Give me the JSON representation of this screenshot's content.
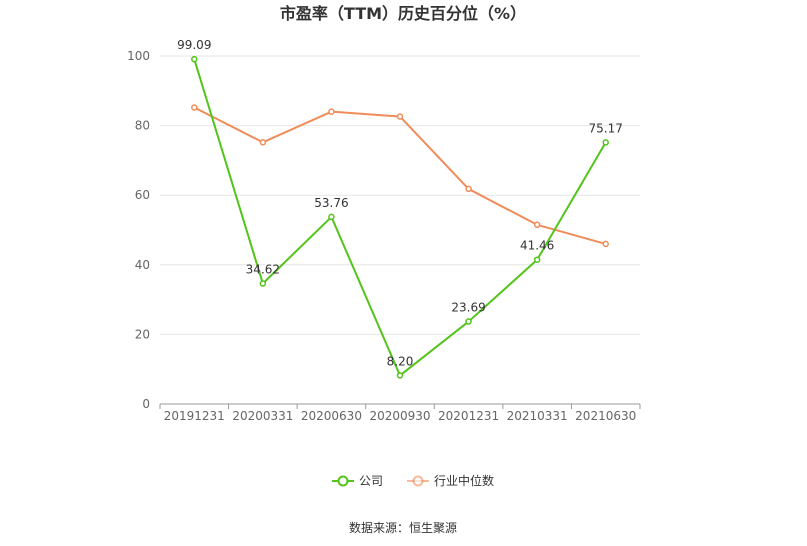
{
  "chart_data": {
    "type": "line",
    "title": "市盈率（TTM）历史百分位（%）",
    "categories": [
      "20191231",
      "20200331",
      "20200630",
      "20200930",
      "20201231",
      "20210331",
      "20210630"
    ],
    "ylim": [
      0,
      100
    ],
    "yticks": [
      0,
      20,
      40,
      60,
      80,
      100
    ],
    "grid": true,
    "legend_position": "bottom",
    "series": [
      {
        "name": "公司",
        "color": "#52c41a",
        "values": [
          99.09,
          34.62,
          53.76,
          8.2,
          23.69,
          41.46,
          75.17
        ],
        "labels": [
          "99.09",
          "34.62",
          "53.76",
          "8.20",
          "23.69",
          "41.46",
          "75.17"
        ]
      },
      {
        "name": "行业中位数",
        "color": "#f08c5a",
        "values": [
          85.2,
          75.2,
          84.0,
          82.6,
          61.8,
          51.5,
          46.0
        ]
      }
    ],
    "source": "数据来源：恒生聚源"
  }
}
